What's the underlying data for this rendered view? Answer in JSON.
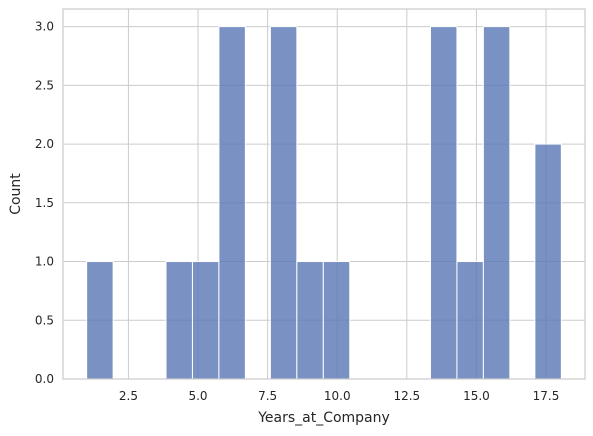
{
  "chart_data": {
    "type": "bar",
    "subtype": "histogram",
    "title": "",
    "xlabel": "Years_at_Company",
    "ylabel": "Count",
    "bins": [
      {
        "x0": 1.0,
        "x1": 1.95,
        "count": 1
      },
      {
        "x0": 3.85,
        "x1": 4.8,
        "count": 1
      },
      {
        "x0": 4.8,
        "x1": 5.75,
        "count": 1
      },
      {
        "x0": 5.75,
        "x1": 6.7,
        "count": 3
      },
      {
        "x0": 7.6,
        "x1": 8.55,
        "count": 3
      },
      {
        "x0": 8.55,
        "x1": 9.5,
        "count": 1
      },
      {
        "x0": 9.5,
        "x1": 10.45,
        "count": 1
      },
      {
        "x0": 13.35,
        "x1": 14.3,
        "count": 3
      },
      {
        "x0": 14.3,
        "x1": 15.25,
        "count": 1
      },
      {
        "x0": 15.25,
        "x1": 16.2,
        "count": 3
      },
      {
        "x0": 17.1,
        "x1": 18.05,
        "count": 2
      }
    ],
    "xlim": [
      0.15,
      18.9
    ],
    "ylim": [
      0,
      3.15
    ],
    "xticks": [
      {
        "value": 2.5,
        "label": "2.5"
      },
      {
        "value": 5.0,
        "label": "5.0"
      },
      {
        "value": 7.5,
        "label": "7.5"
      },
      {
        "value": 10.0,
        "label": "10.0"
      },
      {
        "value": 12.5,
        "label": "12.5"
      },
      {
        "value": 15.0,
        "label": "15.0"
      },
      {
        "value": 17.5,
        "label": "17.5"
      }
    ],
    "yticks": [
      {
        "value": 0.0,
        "label": "0.0"
      },
      {
        "value": 0.5,
        "label": "0.5"
      },
      {
        "value": 1.0,
        "label": "1.0"
      },
      {
        "value": 1.5,
        "label": "1.5"
      },
      {
        "value": 2.0,
        "label": "2.0"
      },
      {
        "value": 2.5,
        "label": "2.5"
      },
      {
        "value": 3.0,
        "label": "3.0"
      }
    ],
    "grid": true,
    "legend": "none",
    "colors": {
      "bar": "#5975b5",
      "grid": "#cccccc"
    }
  }
}
